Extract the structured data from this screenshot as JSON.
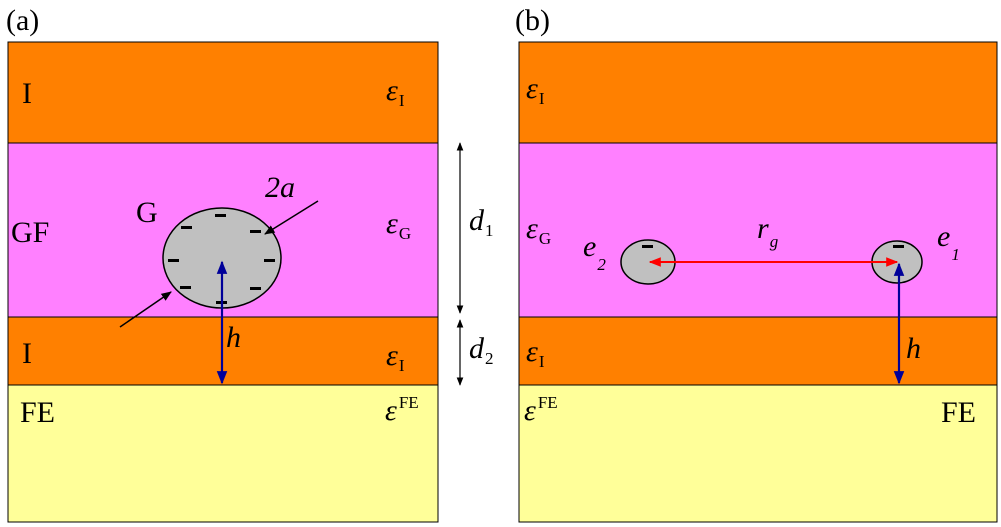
{
  "colors": {
    "insulator": "#FF8000",
    "graphene_film": "#FF80FF",
    "ferroelectric": "#FFFF99",
    "particle": "#C0C0C0",
    "distance_arrow": "#FF0000",
    "height_arrow": "#000099"
  },
  "panel_a": {
    "tag": "(a)",
    "layers": {
      "top": {
        "label": "I",
        "eps_base": "ε",
        "eps_sub": "I"
      },
      "middle": {
        "label": "GF",
        "eps_base": "ε",
        "eps_sub": "G"
      },
      "bottom": {
        "label": "I",
        "eps_base": "ε",
        "eps_sub": "I"
      },
      "substrate": {
        "label": "FE",
        "eps_base": "ε",
        "eps_sup": "FE"
      }
    },
    "particle_label": "G",
    "diameter_label": "2a",
    "charge_symbol": "−",
    "height_label": "h",
    "dim_d1": {
      "base": "d",
      "sub": "1"
    },
    "dim_d2": {
      "base": "d",
      "sub": "2"
    }
  },
  "panel_b": {
    "tag": "(b)",
    "layers": {
      "top": {
        "eps_base": "ε",
        "eps_sub": "I"
      },
      "middle": {
        "eps_base": "ε",
        "eps_sub": "G"
      },
      "bottom": {
        "eps_base": "ε",
        "eps_sub": "I"
      },
      "substrate": {
        "label": "FE",
        "eps_base": "ε",
        "eps_sup": "FE"
      }
    },
    "electron_left": {
      "base": "e",
      "sub": "2"
    },
    "electron_right": {
      "base": "e",
      "sub": "1"
    },
    "distance_label": {
      "base": "r",
      "sub": "g"
    },
    "charge_symbol": "−",
    "height_label": "h"
  }
}
